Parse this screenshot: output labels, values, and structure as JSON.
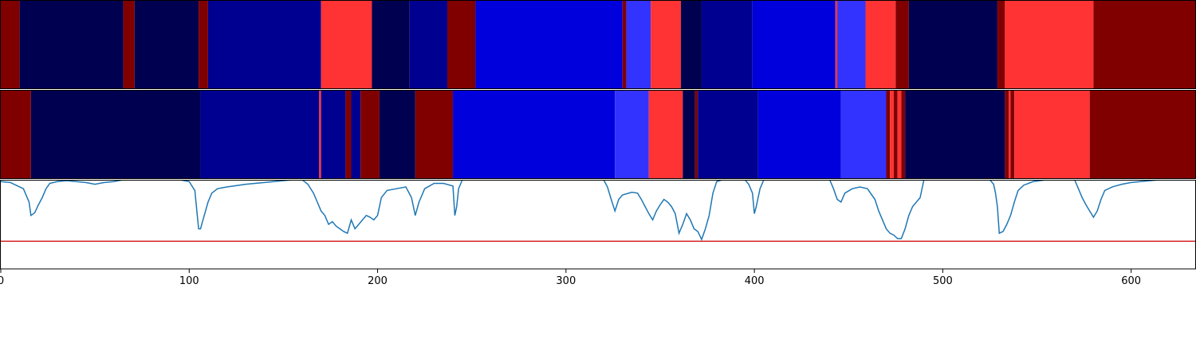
{
  "chart_data": {
    "type": "segmentation",
    "xlim": [
      0,
      634
    ],
    "xticks": [
      0,
      100,
      200,
      300,
      400,
      500,
      600
    ],
    "state_rows": [
      {
        "segments": [
          {
            "start": 0,
            "end": 10,
            "color": "#800000"
          },
          {
            "start": 10,
            "end": 65,
            "color": "#000050"
          },
          {
            "start": 65,
            "end": 71,
            "color": "#800000"
          },
          {
            "start": 71,
            "end": 105,
            "color": "#000050"
          },
          {
            "start": 105,
            "end": 110,
            "color": "#800000"
          },
          {
            "start": 110,
            "end": 170,
            "color": "#000090"
          },
          {
            "start": 170,
            "end": 197,
            "color": "#ff3333"
          },
          {
            "start": 197,
            "end": 217,
            "color": "#000050"
          },
          {
            "start": 217,
            "end": 237,
            "color": "#000090"
          },
          {
            "start": 237,
            "end": 252,
            "color": "#800000"
          },
          {
            "start": 252,
            "end": 330,
            "color": "#0000dd"
          },
          {
            "start": 330,
            "end": 332,
            "color": "#800000"
          },
          {
            "start": 332,
            "end": 345,
            "color": "#3333ff"
          },
          {
            "start": 345,
            "end": 361,
            "color": "#ff3333"
          },
          {
            "start": 361,
            "end": 372,
            "color": "#000050"
          },
          {
            "start": 372,
            "end": 399,
            "color": "#000090"
          },
          {
            "start": 399,
            "end": 443,
            "color": "#0000dd"
          },
          {
            "start": 443,
            "end": 444,
            "color": "#ff3333"
          },
          {
            "start": 444,
            "end": 459,
            "color": "#3333ff"
          },
          {
            "start": 459,
            "end": 475,
            "color": "#ff3333"
          },
          {
            "start": 475,
            "end": 482,
            "color": "#800000"
          },
          {
            "start": 482,
            "end": 529,
            "color": "#000050"
          },
          {
            "start": 529,
            "end": 533,
            "color": "#800000"
          },
          {
            "start": 533,
            "end": 580,
            "color": "#ff3333"
          },
          {
            "start": 580,
            "end": 634,
            "color": "#800000"
          }
        ]
      },
      {
        "segments": [
          {
            "start": 0,
            "end": 16,
            "color": "#800000"
          },
          {
            "start": 16,
            "end": 106,
            "color": "#000050"
          },
          {
            "start": 106,
            "end": 169,
            "color": "#000090"
          },
          {
            "start": 169,
            "end": 170,
            "color": "#ff3333"
          },
          {
            "start": 170,
            "end": 183,
            "color": "#000090"
          },
          {
            "start": 183,
            "end": 186,
            "color": "#800000"
          },
          {
            "start": 186,
            "end": 191,
            "color": "#000090"
          },
          {
            "start": 191,
            "end": 201,
            "color": "#800000"
          },
          {
            "start": 201,
            "end": 220,
            "color": "#000050"
          },
          {
            "start": 220,
            "end": 240,
            "color": "#800000"
          },
          {
            "start": 240,
            "end": 326,
            "color": "#0000dd"
          },
          {
            "start": 326,
            "end": 344,
            "color": "#3333ff"
          },
          {
            "start": 344,
            "end": 362,
            "color": "#ff3333"
          },
          {
            "start": 362,
            "end": 368.5,
            "color": "#000050"
          },
          {
            "start": 368.5,
            "end": 370,
            "color": "#800000"
          },
          {
            "start": 370,
            "end": 402,
            "color": "#000090"
          },
          {
            "start": 402,
            "end": 446,
            "color": "#0000dd"
          },
          {
            "start": 446,
            "end": 470,
            "color": "#3333ff"
          },
          {
            "start": 470,
            "end": 472,
            "color": "#800000"
          },
          {
            "start": 472,
            "end": 474,
            "color": "#ff3333"
          },
          {
            "start": 474,
            "end": 476,
            "color": "#800000"
          },
          {
            "start": 476,
            "end": 478,
            "color": "#ff3333"
          },
          {
            "start": 478,
            "end": 480,
            "color": "#800000"
          },
          {
            "start": 480,
            "end": 533,
            "color": "#000050"
          },
          {
            "start": 533,
            "end": 535,
            "color": "#800000"
          },
          {
            "start": 535,
            "end": 536,
            "color": "#ff3333"
          },
          {
            "start": 536,
            "end": 538,
            "color": "#800000"
          },
          {
            "start": 538,
            "end": 578,
            "color": "#ff3333"
          },
          {
            "start": 578,
            "end": 634,
            "color": "#800000"
          }
        ]
      }
    ],
    "ylim": [
      0,
      1
    ],
    "threshold": {
      "value": 0.31,
      "color": "#d62728"
    },
    "line": {
      "color": "#1f77b4",
      "x": [
        0,
        5,
        8,
        12,
        15,
        16,
        18,
        20,
        22,
        24,
        26,
        30,
        35,
        40,
        45,
        50,
        55,
        60,
        65,
        70,
        80,
        95,
        100,
        103,
        105,
        106,
        108,
        110,
        112,
        115,
        120,
        130,
        140,
        150,
        155,
        160,
        163,
        166,
        168,
        170,
        172,
        174,
        176,
        178,
        180,
        182,
        184,
        186,
        188,
        190,
        192,
        194,
        196,
        198,
        200,
        202,
        205,
        210,
        215,
        218,
        220,
        222,
        225,
        230,
        235,
        240,
        241,
        242,
        243,
        245,
        260,
        300,
        320,
        322,
        324,
        326,
        328,
        330,
        335,
        338,
        340,
        342,
        344,
        346,
        348,
        350,
        352,
        354,
        356,
        358,
        360,
        362,
        364,
        366,
        368,
        370,
        372,
        374,
        376,
        378,
        380,
        383,
        395,
        397,
        399,
        400,
        401,
        403,
        405,
        440,
        442,
        444,
        446,
        448,
        452,
        456,
        460,
        464,
        466,
        468,
        470,
        472,
        474,
        476,
        478,
        480,
        482,
        484,
        486,
        488,
        490,
        500,
        525,
        527,
        528,
        529,
        530,
        532,
        534,
        536,
        538,
        540,
        543,
        548,
        555,
        570,
        572,
        574,
        576,
        578,
        580,
        582,
        584,
        586,
        590,
        595,
        600,
        610,
        615,
        634
      ],
      "values": [
        0.98,
        0.97,
        0.94,
        0.9,
        0.75,
        0.6,
        0.63,
        0.72,
        0.8,
        0.9,
        0.96,
        0.98,
        0.99,
        0.98,
        0.97,
        0.95,
        0.97,
        0.98,
        1,
        1,
        1,
        1,
        0.98,
        0.88,
        0.45,
        0.45,
        0.6,
        0.75,
        0.85,
        0.9,
        0.92,
        0.95,
        0.97,
        0.99,
        1,
        1,
        0.95,
        0.85,
        0.75,
        0.65,
        0.6,
        0.5,
        0.53,
        0.48,
        0.45,
        0.42,
        0.4,
        0.55,
        0.45,
        0.5,
        0.55,
        0.6,
        0.58,
        0.55,
        0.6,
        0.8,
        0.88,
        0.9,
        0.92,
        0.8,
        0.6,
        0.75,
        0.9,
        0.96,
        0.96,
        0.93,
        0.6,
        0.7,
        0.9,
        1,
        1,
        1,
        1,
        0.92,
        0.78,
        0.65,
        0.78,
        0.83,
        0.86,
        0.85,
        0.78,
        0.7,
        0.62,
        0.55,
        0.65,
        0.72,
        0.78,
        0.75,
        0.7,
        0.62,
        0.4,
        0.5,
        0.62,
        0.55,
        0.45,
        0.42,
        0.33,
        0.45,
        0.6,
        0.85,
        0.98,
        1,
        1,
        0.95,
        0.85,
        0.62,
        0.7,
        0.9,
        1,
        1,
        0.9,
        0.78,
        0.75,
        0.85,
        0.9,
        0.92,
        0.9,
        0.78,
        0.65,
        0.55,
        0.45,
        0.4,
        0.38,
        0.34,
        0.34,
        0.45,
        0.6,
        0.7,
        0.75,
        0.8,
        1,
        1,
        1,
        0.95,
        0.85,
        0.7,
        0.4,
        0.42,
        0.5,
        0.6,
        0.75,
        0.88,
        0.94,
        0.98,
        1,
        1,
        0.9,
        0.8,
        0.72,
        0.65,
        0.58,
        0.65,
        0.78,
        0.88,
        0.92,
        0.95,
        0.97,
        0.99,
        1,
        1
      ]
    }
  }
}
